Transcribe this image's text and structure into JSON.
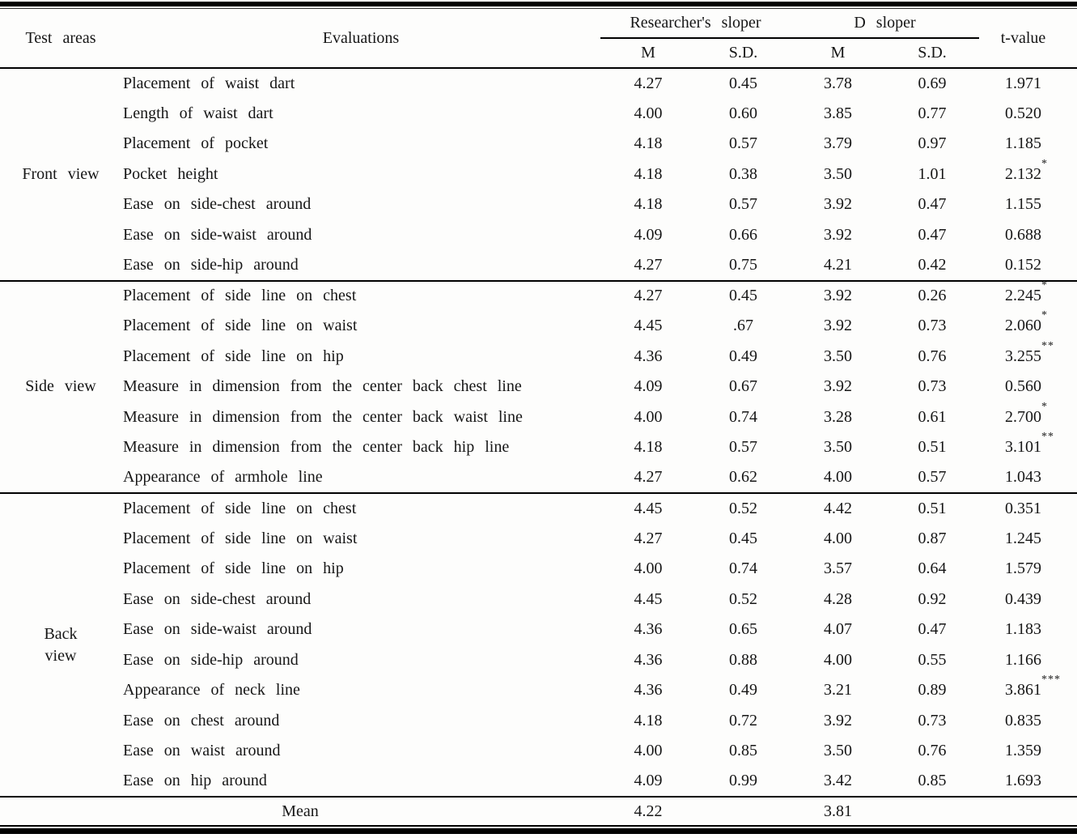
{
  "header": {
    "test_areas": "Test areas",
    "evaluations": "Evaluations",
    "researchers_sloper": "Researcher's sloper",
    "d_sloper": "D sloper",
    "m1": "M",
    "sd1": "S.D.",
    "m2": "M",
    "sd2": "S.D.",
    "t_value": "t-value"
  },
  "sections": [
    {
      "area": "Front view",
      "area_lines": [
        "Front view"
      ],
      "rows": [
        {
          "evaluation": "Placement of waist dart",
          "r_m": "4.27",
          "r_sd": "0.45",
          "d_m": "3.78",
          "d_sd": "0.69",
          "t": "1.971",
          "stars": ""
        },
        {
          "evaluation": "Length of waist dart",
          "r_m": "4.00",
          "r_sd": "0.60",
          "d_m": "3.85",
          "d_sd": "0.77",
          "t": "0.520",
          "stars": ""
        },
        {
          "evaluation": "Placement of pocket",
          "r_m": "4.18",
          "r_sd": "0.57",
          "d_m": "3.79",
          "d_sd": "0.97",
          "t": "1.185",
          "stars": ""
        },
        {
          "evaluation": "Pocket height",
          "r_m": "4.18",
          "r_sd": "0.38",
          "d_m": "3.50",
          "d_sd": "1.01",
          "t": "2.132",
          "stars": "*"
        },
        {
          "evaluation": "Ease on side-chest around",
          "r_m": "4.18",
          "r_sd": "0.57",
          "d_m": "3.92",
          "d_sd": "0.47",
          "t": "1.155",
          "stars": ""
        },
        {
          "evaluation": "Ease on side-waist around",
          "r_m": "4.09",
          "r_sd": "0.66",
          "d_m": "3.92",
          "d_sd": "0.47",
          "t": "0.688",
          "stars": ""
        },
        {
          "evaluation": "Ease on side-hip around",
          "r_m": "4.27",
          "r_sd": "0.75",
          "d_m": "4.21",
          "d_sd": "0.42",
          "t": "0.152",
          "stars": ""
        }
      ]
    },
    {
      "area": "Side view",
      "area_lines": [
        "Side view"
      ],
      "rows": [
        {
          "evaluation": "Placement of side line on chest",
          "r_m": "4.27",
          "r_sd": "0.45",
          "d_m": "3.92",
          "d_sd": "0.26",
          "t": "2.245",
          "stars": "*"
        },
        {
          "evaluation": "Placement of side line on waist",
          "r_m": "4.45",
          "r_sd": ".67",
          "d_m": "3.92",
          "d_sd": "0.73",
          "t": "2.060",
          "stars": "*"
        },
        {
          "evaluation": "Placement of side line on hip",
          "r_m": "4.36",
          "r_sd": "0.49",
          "d_m": "3.50",
          "d_sd": "0.76",
          "t": "3.255",
          "stars": "**"
        },
        {
          "evaluation": "Measure in dimension from the center back chest line",
          "r_m": "4.09",
          "r_sd": "0.67",
          "d_m": "3.92",
          "d_sd": "0.73",
          "t": "0.560",
          "stars": ""
        },
        {
          "evaluation": "Measure in dimension from the center back waist line",
          "r_m": "4.00",
          "r_sd": "0.74",
          "d_m": "3.28",
          "d_sd": "0.61",
          "t": "2.700",
          "stars": "*"
        },
        {
          "evaluation": "Measure in dimension from the center back hip line",
          "r_m": "4.18",
          "r_sd": "0.57",
          "d_m": "3.50",
          "d_sd": "0.51",
          "t": "3.101",
          "stars": "**"
        },
        {
          "evaluation": "Appearance of armhole line",
          "r_m": "4.27",
          "r_sd": "0.62",
          "d_m": "4.00",
          "d_sd": "0.57",
          "t": "1.043",
          "stars": ""
        }
      ]
    },
    {
      "area": "Back view",
      "area_lines": [
        "Back",
        "view"
      ],
      "rows": [
        {
          "evaluation": "Placement of side line on chest",
          "r_m": "4.45",
          "r_sd": "0.52",
          "d_m": "4.42",
          "d_sd": "0.51",
          "t": "0.351",
          "stars": ""
        },
        {
          "evaluation": "Placement of side line on waist",
          "r_m": "4.27",
          "r_sd": "0.45",
          "d_m": "4.00",
          "d_sd": "0.87",
          "t": "1.245",
          "stars": ""
        },
        {
          "evaluation": "Placement of side line on hip",
          "r_m": "4.00",
          "r_sd": "0.74",
          "d_m": "3.57",
          "d_sd": "0.64",
          "t": "1.579",
          "stars": ""
        },
        {
          "evaluation": "Ease on side-chest around",
          "r_m": "4.45",
          "r_sd": "0.52",
          "d_m": "4.28",
          "d_sd": "0.92",
          "t": "0.439",
          "stars": ""
        },
        {
          "evaluation": "Ease on side-waist around",
          "r_m": "4.36",
          "r_sd": "0.65",
          "d_m": "4.07",
          "d_sd": "0.47",
          "t": "1.183",
          "stars": ""
        },
        {
          "evaluation": "Ease on side-hip around",
          "r_m": "4.36",
          "r_sd": "0.88",
          "d_m": "4.00",
          "d_sd": "0.55",
          "t": "1.166",
          "stars": ""
        },
        {
          "evaluation": "Appearance of neck line",
          "r_m": "4.36",
          "r_sd": "0.49",
          "d_m": "3.21",
          "d_sd": "0.89",
          "t": "3.861",
          "stars": "***"
        },
        {
          "evaluation": "Ease on chest around",
          "r_m": "4.18",
          "r_sd": "0.72",
          "d_m": "3.92",
          "d_sd": "0.73",
          "t": "0.835",
          "stars": ""
        },
        {
          "evaluation": "Ease on waist around",
          "r_m": "4.00",
          "r_sd": "0.85",
          "d_m": "3.50",
          "d_sd": "0.76",
          "t": "1.359",
          "stars": ""
        },
        {
          "evaluation": "Ease on hip around",
          "r_m": "4.09",
          "r_sd": "0.99",
          "d_m": "3.42",
          "d_sd": "0.85",
          "t": "1.693",
          "stars": ""
        }
      ]
    }
  ],
  "mean_row": {
    "label": "Mean",
    "r_m": "4.22",
    "r_sd": "",
    "d_m": "3.81",
    "d_sd": "",
    "t": ""
  }
}
